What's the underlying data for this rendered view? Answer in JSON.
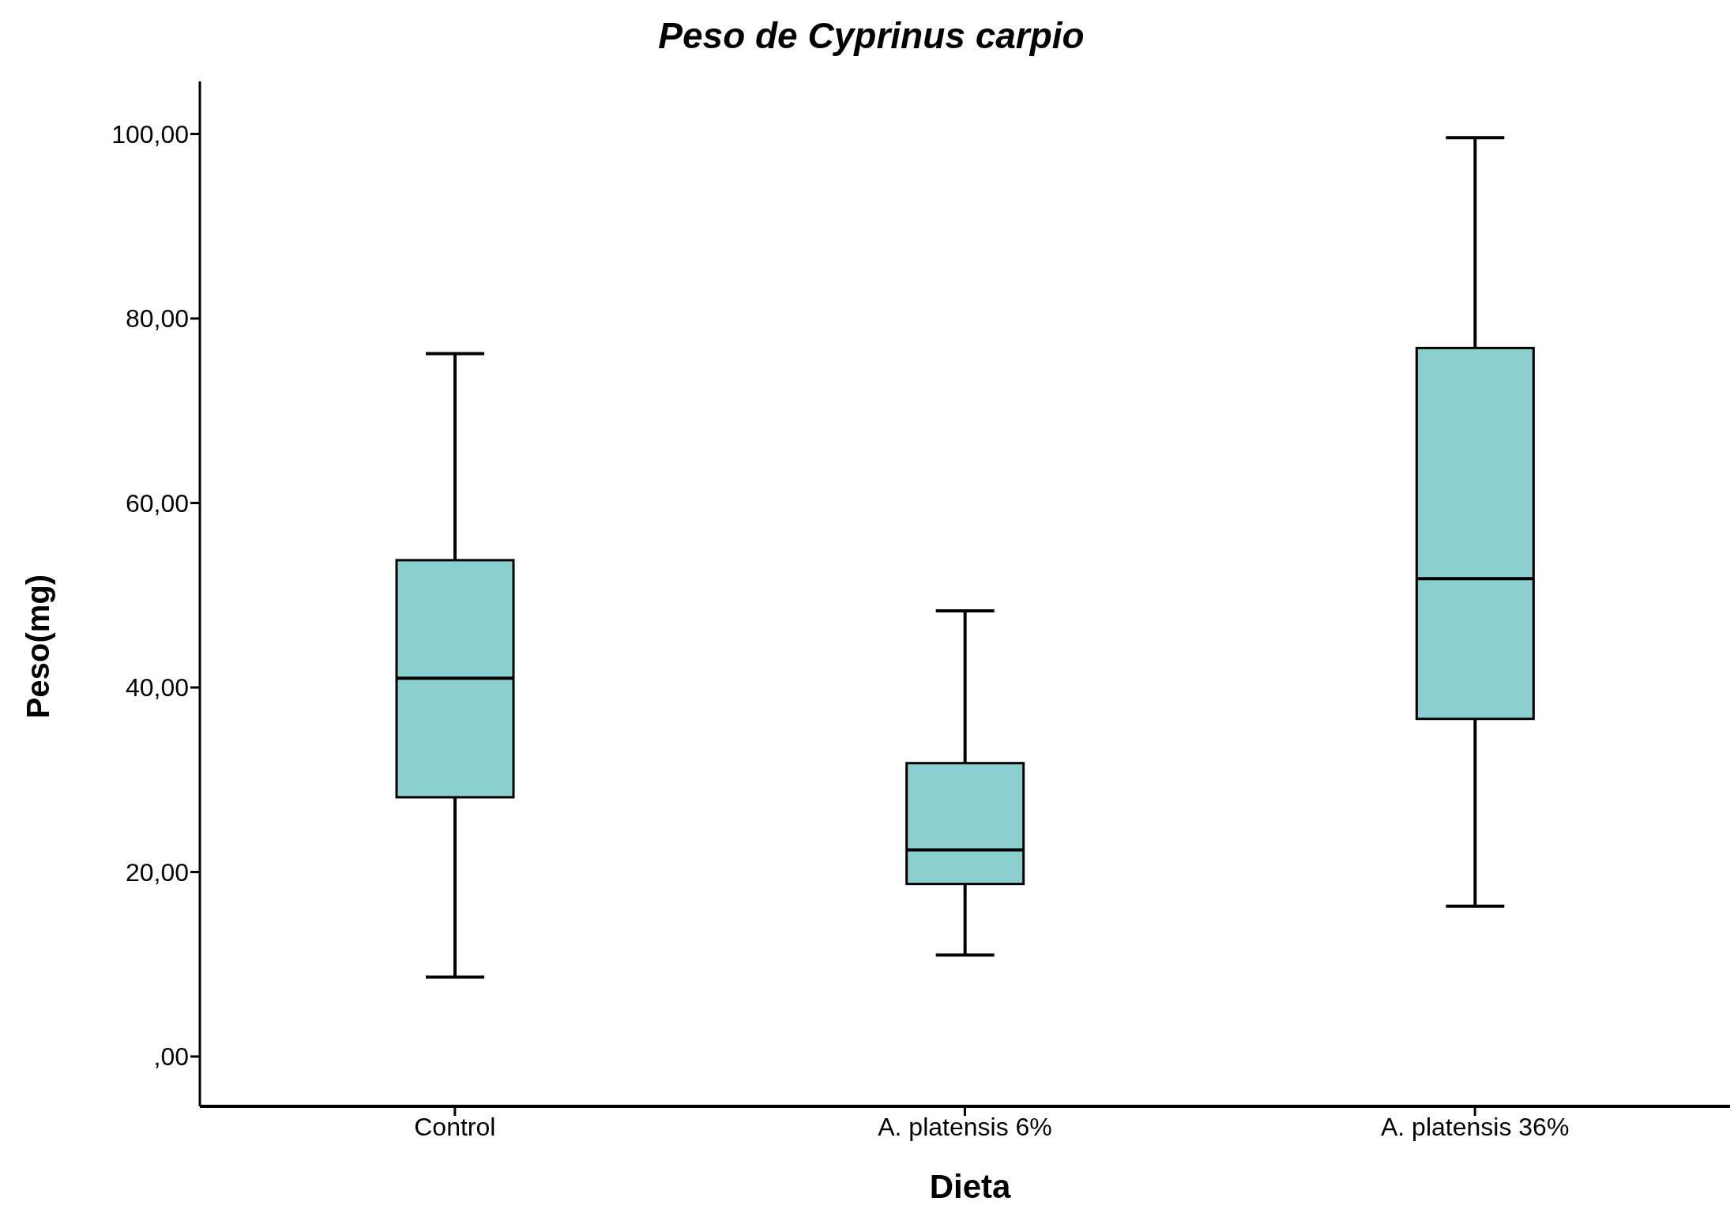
{
  "chart_data": {
    "type": "box",
    "title": "Peso de Cyprinus carpio",
    "xlabel": "Dieta",
    "ylabel": "Peso(mg)",
    "categories": [
      "Control",
      "A. platensis 6%",
      "A. platensis 36%"
    ],
    "boxes": [
      {
        "low": 8.6,
        "q1": 28.1,
        "median": 41.0,
        "q3": 53.8,
        "high": 76.2
      },
      {
        "low": 11.0,
        "q1": 18.7,
        "median": 22.4,
        "q3": 31.8,
        "high": 48.3
      },
      {
        "low": 16.3,
        "q1": 36.6,
        "median": 51.8,
        "q3": 76.8,
        "high": 99.6
      }
    ],
    "color": "#8ccfcf",
    "ylim": [
      -5.4,
      105.7
    ],
    "yticks": [
      {
        "value": 0,
        "label": ",00"
      },
      {
        "value": 20,
        "label": "20,00"
      },
      {
        "value": 40,
        "label": "40,00"
      },
      {
        "value": 60,
        "label": "60,00"
      },
      {
        "value": 80,
        "label": "80,00"
      },
      {
        "value": 100,
        "label": "100,00"
      }
    ],
    "grid": false,
    "legend": false
  }
}
